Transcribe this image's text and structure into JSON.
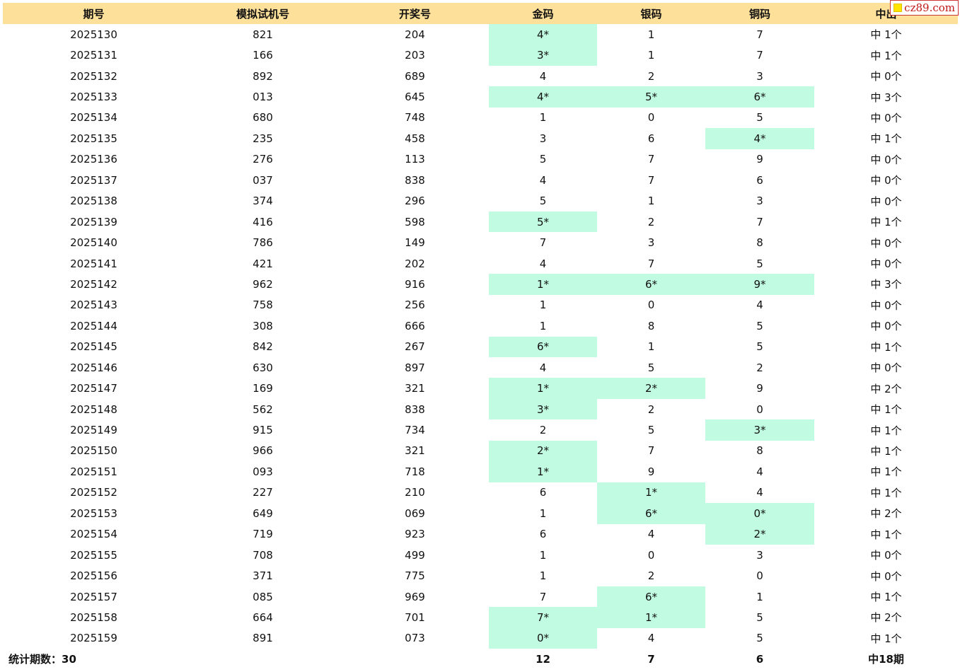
{
  "header": {
    "col_issue": "期号",
    "col_sim": "模拟试机号",
    "col_draw": "开奖号",
    "col_gold": "金码",
    "col_silver": "银码",
    "col_bronze": "铜码",
    "col_hits": "中出"
  },
  "watermark": {
    "text": "cz89.com"
  },
  "rows": [
    {
      "issue": "2025130",
      "sim": "821",
      "draw": "204",
      "gold": "4*",
      "silver": "1",
      "bronze": "7",
      "hits": "中 1个",
      "gold_hit": true,
      "silver_hit": false,
      "bronze_hit": false
    },
    {
      "issue": "2025131",
      "sim": "166",
      "draw": "203",
      "gold": "3*",
      "silver": "1",
      "bronze": "7",
      "hits": "中 1个",
      "gold_hit": true,
      "silver_hit": false,
      "bronze_hit": false
    },
    {
      "issue": "2025132",
      "sim": "892",
      "draw": "689",
      "gold": "4",
      "silver": "2",
      "bronze": "3",
      "hits": "中 0个",
      "gold_hit": false,
      "silver_hit": false,
      "bronze_hit": false
    },
    {
      "issue": "2025133",
      "sim": "013",
      "draw": "645",
      "gold": "4*",
      "silver": "5*",
      "bronze": "6*",
      "hits": "中 3个",
      "gold_hit": true,
      "silver_hit": true,
      "bronze_hit": true
    },
    {
      "issue": "2025134",
      "sim": "680",
      "draw": "748",
      "gold": "1",
      "silver": "0",
      "bronze": "5",
      "hits": "中 0个",
      "gold_hit": false,
      "silver_hit": false,
      "bronze_hit": false
    },
    {
      "issue": "2025135",
      "sim": "235",
      "draw": "458",
      "gold": "3",
      "silver": "6",
      "bronze": "4*",
      "hits": "中 1个",
      "gold_hit": false,
      "silver_hit": false,
      "bronze_hit": true
    },
    {
      "issue": "2025136",
      "sim": "276",
      "draw": "113",
      "gold": "5",
      "silver": "7",
      "bronze": "9",
      "hits": "中 0个",
      "gold_hit": false,
      "silver_hit": false,
      "bronze_hit": false
    },
    {
      "issue": "2025137",
      "sim": "037",
      "draw": "838",
      "gold": "4",
      "silver": "7",
      "bronze": "6",
      "hits": "中 0个",
      "gold_hit": false,
      "silver_hit": false,
      "bronze_hit": false
    },
    {
      "issue": "2025138",
      "sim": "374",
      "draw": "296",
      "gold": "5",
      "silver": "1",
      "bronze": "3",
      "hits": "中 0个",
      "gold_hit": false,
      "silver_hit": false,
      "bronze_hit": false
    },
    {
      "issue": "2025139",
      "sim": "416",
      "draw": "598",
      "gold": "5*",
      "silver": "2",
      "bronze": "7",
      "hits": "中 1个",
      "gold_hit": true,
      "silver_hit": false,
      "bronze_hit": false
    },
    {
      "issue": "2025140",
      "sim": "786",
      "draw": "149",
      "gold": "7",
      "silver": "3",
      "bronze": "8",
      "hits": "中 0个",
      "gold_hit": false,
      "silver_hit": false,
      "bronze_hit": false
    },
    {
      "issue": "2025141",
      "sim": "421",
      "draw": "202",
      "gold": "4",
      "silver": "7",
      "bronze": "5",
      "hits": "中 0个",
      "gold_hit": false,
      "silver_hit": false,
      "bronze_hit": false
    },
    {
      "issue": "2025142",
      "sim": "962",
      "draw": "916",
      "gold": "1*",
      "silver": "6*",
      "bronze": "9*",
      "hits": "中 3个",
      "gold_hit": true,
      "silver_hit": true,
      "bronze_hit": true
    },
    {
      "issue": "2025143",
      "sim": "758",
      "draw": "256",
      "gold": "1",
      "silver": "0",
      "bronze": "4",
      "hits": "中 0个",
      "gold_hit": false,
      "silver_hit": false,
      "bronze_hit": false
    },
    {
      "issue": "2025144",
      "sim": "308",
      "draw": "666",
      "gold": "1",
      "silver": "8",
      "bronze": "5",
      "hits": "中 0个",
      "gold_hit": false,
      "silver_hit": false,
      "bronze_hit": false
    },
    {
      "issue": "2025145",
      "sim": "842",
      "draw": "267",
      "gold": "6*",
      "silver": "1",
      "bronze": "5",
      "hits": "中 1个",
      "gold_hit": true,
      "silver_hit": false,
      "bronze_hit": false
    },
    {
      "issue": "2025146",
      "sim": "630",
      "draw": "897",
      "gold": "4",
      "silver": "5",
      "bronze": "2",
      "hits": "中 0个",
      "gold_hit": false,
      "silver_hit": false,
      "bronze_hit": false
    },
    {
      "issue": "2025147",
      "sim": "169",
      "draw": "321",
      "gold": "1*",
      "silver": "2*",
      "bronze": "9",
      "hits": "中 2个",
      "gold_hit": true,
      "silver_hit": true,
      "bronze_hit": false
    },
    {
      "issue": "2025148",
      "sim": "562",
      "draw": "838",
      "gold": "3*",
      "silver": "2",
      "bronze": "0",
      "hits": "中 1个",
      "gold_hit": true,
      "silver_hit": false,
      "bronze_hit": false
    },
    {
      "issue": "2025149",
      "sim": "915",
      "draw": "734",
      "gold": "2",
      "silver": "5",
      "bronze": "3*",
      "hits": "中 1个",
      "gold_hit": false,
      "silver_hit": false,
      "bronze_hit": true
    },
    {
      "issue": "2025150",
      "sim": "966",
      "draw": "321",
      "gold": "2*",
      "silver": "7",
      "bronze": "8",
      "hits": "中 1个",
      "gold_hit": true,
      "silver_hit": false,
      "bronze_hit": false
    },
    {
      "issue": "2025151",
      "sim": "093",
      "draw": "718",
      "gold": "1*",
      "silver": "9",
      "bronze": "4",
      "hits": "中 1个",
      "gold_hit": true,
      "silver_hit": false,
      "bronze_hit": false
    },
    {
      "issue": "2025152",
      "sim": "227",
      "draw": "210",
      "gold": "6",
      "silver": "1*",
      "bronze": "4",
      "hits": "中 1个",
      "gold_hit": false,
      "silver_hit": true,
      "bronze_hit": false
    },
    {
      "issue": "2025153",
      "sim": "649",
      "draw": "069",
      "gold": "1",
      "silver": "6*",
      "bronze": "0*",
      "hits": "中 2个",
      "gold_hit": false,
      "silver_hit": true,
      "bronze_hit": true
    },
    {
      "issue": "2025154",
      "sim": "719",
      "draw": "923",
      "gold": "6",
      "silver": "4",
      "bronze": "2*",
      "hits": "中 1个",
      "gold_hit": false,
      "silver_hit": false,
      "bronze_hit": true
    },
    {
      "issue": "2025155",
      "sim": "708",
      "draw": "499",
      "gold": "1",
      "silver": "0",
      "bronze": "3",
      "hits": "中 0个",
      "gold_hit": false,
      "silver_hit": false,
      "bronze_hit": false
    },
    {
      "issue": "2025156",
      "sim": "371",
      "draw": "775",
      "gold": "1",
      "silver": "2",
      "bronze": "0",
      "hits": "中 0个",
      "gold_hit": false,
      "silver_hit": false,
      "bronze_hit": false
    },
    {
      "issue": "2025157",
      "sim": "085",
      "draw": "969",
      "gold": "7",
      "silver": "6*",
      "bronze": "1",
      "hits": "中 1个",
      "gold_hit": false,
      "silver_hit": true,
      "bronze_hit": false
    },
    {
      "issue": "2025158",
      "sim": "664",
      "draw": "701",
      "gold": "7*",
      "silver": "1*",
      "bronze": "5",
      "hits": "中 2个",
      "gold_hit": true,
      "silver_hit": true,
      "bronze_hit": false
    },
    {
      "issue": "2025159",
      "sim": "891",
      "draw": "073",
      "gold": "0*",
      "silver": "4",
      "bronze": "5",
      "hits": "中 1个",
      "gold_hit": true,
      "silver_hit": false,
      "bronze_hit": false
    }
  ],
  "footer": {
    "stat_label": "统计期数：30",
    "gold_total": "12",
    "silver_total": "7",
    "bronze_total": "6",
    "hits_total": "中18期"
  },
  "colors": {
    "header_bg": "#fde09a",
    "hit_bg": "#c1fbe1"
  }
}
